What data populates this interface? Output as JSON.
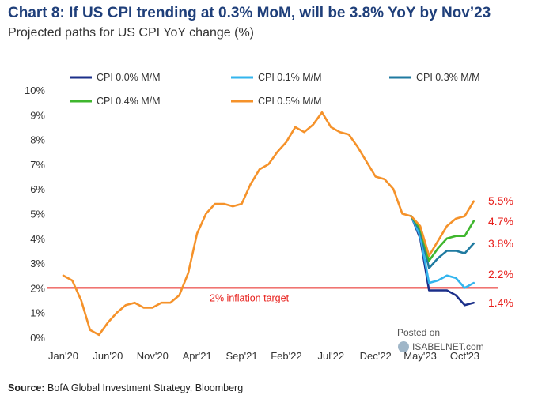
{
  "title": "Chart 8: If US CPI trending at 0.3% MoM, will be 3.8% YoY by Nov’23",
  "subtitle": "Projected paths for US CPI YoY change (%)",
  "source_label": "Source:",
  "source_text": "BofA Global Investment Strategy, Bloomberg",
  "watermark": {
    "line1": "Posted on",
    "line2": "ISABELNET.com"
  },
  "chart_data": {
    "type": "line",
    "xlabel": "",
    "ylabel": "",
    "ylim": [
      0,
      10
    ],
    "yticks": [
      0,
      1,
      2,
      3,
      4,
      5,
      6,
      7,
      8,
      9,
      10
    ],
    "ytick_labels": [
      "0%",
      "1%",
      "2%",
      "3%",
      "4%",
      "5%",
      "6%",
      "7%",
      "8%",
      "9%",
      "10%"
    ],
    "xlim": [
      0,
      47
    ],
    "xticks": [
      0,
      5,
      10,
      15,
      20,
      25,
      30,
      35,
      40,
      45
    ],
    "xtick_labels": [
      "Jan'20",
      "Jun'20",
      "Nov'20",
      "Apr'21",
      "Sep'21",
      "Feb'22",
      "Jul'22",
      "Dec'22",
      "May'23",
      "Oct'23"
    ],
    "grid": false,
    "legend_position": "top",
    "reference_line": {
      "y": 2,
      "label": "2% inflation target",
      "color": "#e8201c"
    },
    "history": {
      "x": [
        0,
        1,
        2,
        3,
        4,
        5,
        6,
        7,
        8,
        9,
        10,
        11,
        12,
        13,
        14,
        15,
        16,
        17,
        18,
        19,
        20,
        21,
        22,
        23,
        24,
        25,
        26,
        27,
        28,
        29,
        30,
        31,
        32,
        33,
        34,
        35,
        36,
        37,
        38,
        39
      ],
      "y": [
        2.5,
        2.3,
        1.5,
        0.3,
        0.1,
        0.6,
        1.0,
        1.3,
        1.4,
        1.2,
        1.2,
        1.4,
        1.4,
        1.7,
        2.6,
        4.2,
        5.0,
        5.4,
        5.4,
        5.3,
        5.4,
        6.2,
        6.8,
        7.0,
        7.5,
        7.9,
        8.5,
        8.3,
        8.6,
        9.1,
        8.5,
        8.3,
        8.2,
        7.7,
        7.1,
        6.5,
        6.4,
        6.0,
        5.0,
        4.9
      ]
    },
    "projection_x": [
      39,
      40,
      41,
      42,
      43,
      44,
      45,
      46
    ],
    "series": [
      {
        "name": "CPI 0.0% M/M",
        "color": "#1b2f8a",
        "end_label": "1.4%",
        "y": [
          4.9,
          4.0,
          1.9,
          1.9,
          1.9,
          1.7,
          1.3,
          1.4
        ]
      },
      {
        "name": "CPI 0.1% M/M",
        "color": "#33b5ee",
        "end_label": "2.2%",
        "y": [
          4.9,
          4.1,
          2.2,
          2.3,
          2.5,
          2.4,
          2.0,
          2.2
        ]
      },
      {
        "name": "CPI 0.3% M/M",
        "color": "#1f7aa0",
        "end_label": "3.8%",
        "y": [
          4.9,
          4.3,
          2.8,
          3.2,
          3.5,
          3.5,
          3.4,
          3.8
        ]
      },
      {
        "name": "CPI 0.4% M/M",
        "color": "#3fb62e",
        "end_label": "4.7%",
        "y": [
          4.9,
          4.4,
          3.1,
          3.6,
          4.0,
          4.1,
          4.1,
          4.7
        ]
      },
      {
        "name": "CPI 0.5% M/M",
        "color": "#f5922a",
        "end_label": "5.5%",
        "y": [
          4.9,
          4.5,
          3.3,
          3.9,
          4.5,
          4.8,
          4.9,
          5.5
        ]
      }
    ],
    "end_label_color": "#e8201c"
  }
}
